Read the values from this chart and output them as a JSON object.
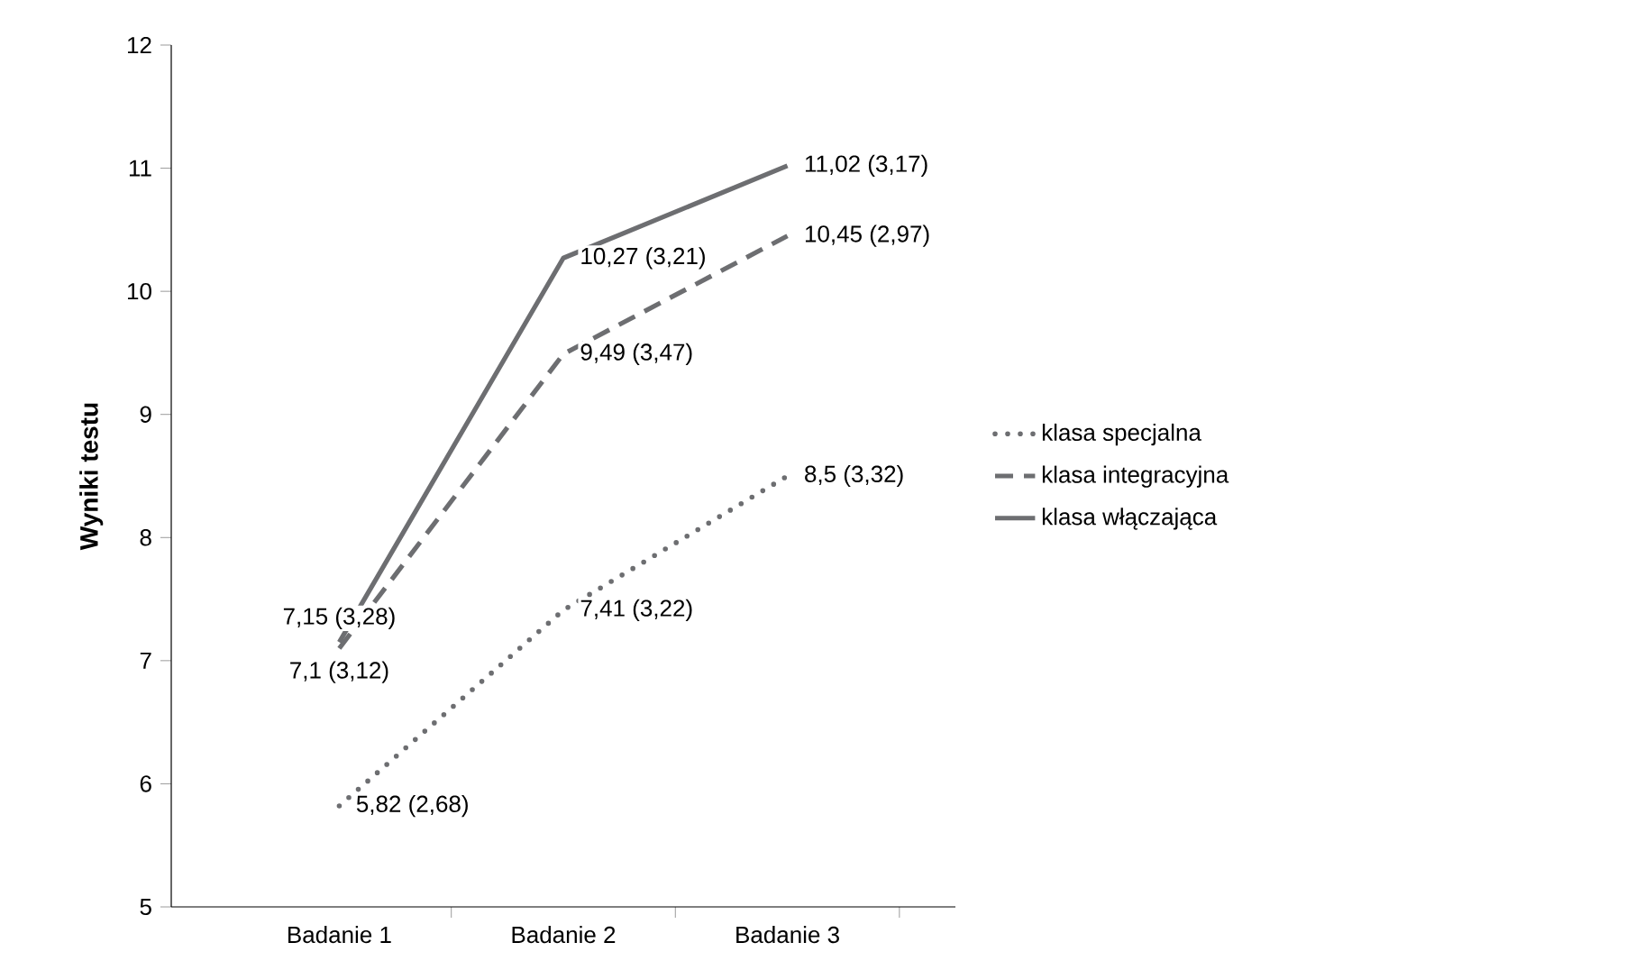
{
  "chart_data": {
    "type": "line",
    "ylabel": "Wyniki testu",
    "categories": [
      "Badanie 1",
      "Badanie 2",
      "Badanie 3"
    ],
    "ylim": [
      5,
      12
    ],
    "yticks": [
      5,
      6,
      7,
      8,
      9,
      10,
      11,
      12
    ],
    "legend": "right",
    "series": [
      {
        "name": "klasa specjalna",
        "color": "#6d6e71",
        "line_style": "dotted",
        "values": [
          5.82,
          7.41,
          8.5
        ],
        "value_labels": [
          "5,82 (2,68)",
          "7,41 (3,22)",
          "8,5 (3,32)"
        ]
      },
      {
        "name": "klasa integracyjna",
        "color": "#6d6e71",
        "line_style": "dashed",
        "values": [
          7.1,
          9.49,
          10.45
        ],
        "value_labels": [
          "7,1 (3,12)",
          "9,49 (3,47)",
          "10,45 (2,97)"
        ]
      },
      {
        "name": "klasa włączająca",
        "color": "#6d6e71",
        "line_style": "solid",
        "values": [
          7.15,
          10.27,
          11.02
        ],
        "value_labels": [
          "7,15 (3,28)",
          "10,27 (3,21)",
          "11,02 (3,17)"
        ]
      }
    ]
  }
}
